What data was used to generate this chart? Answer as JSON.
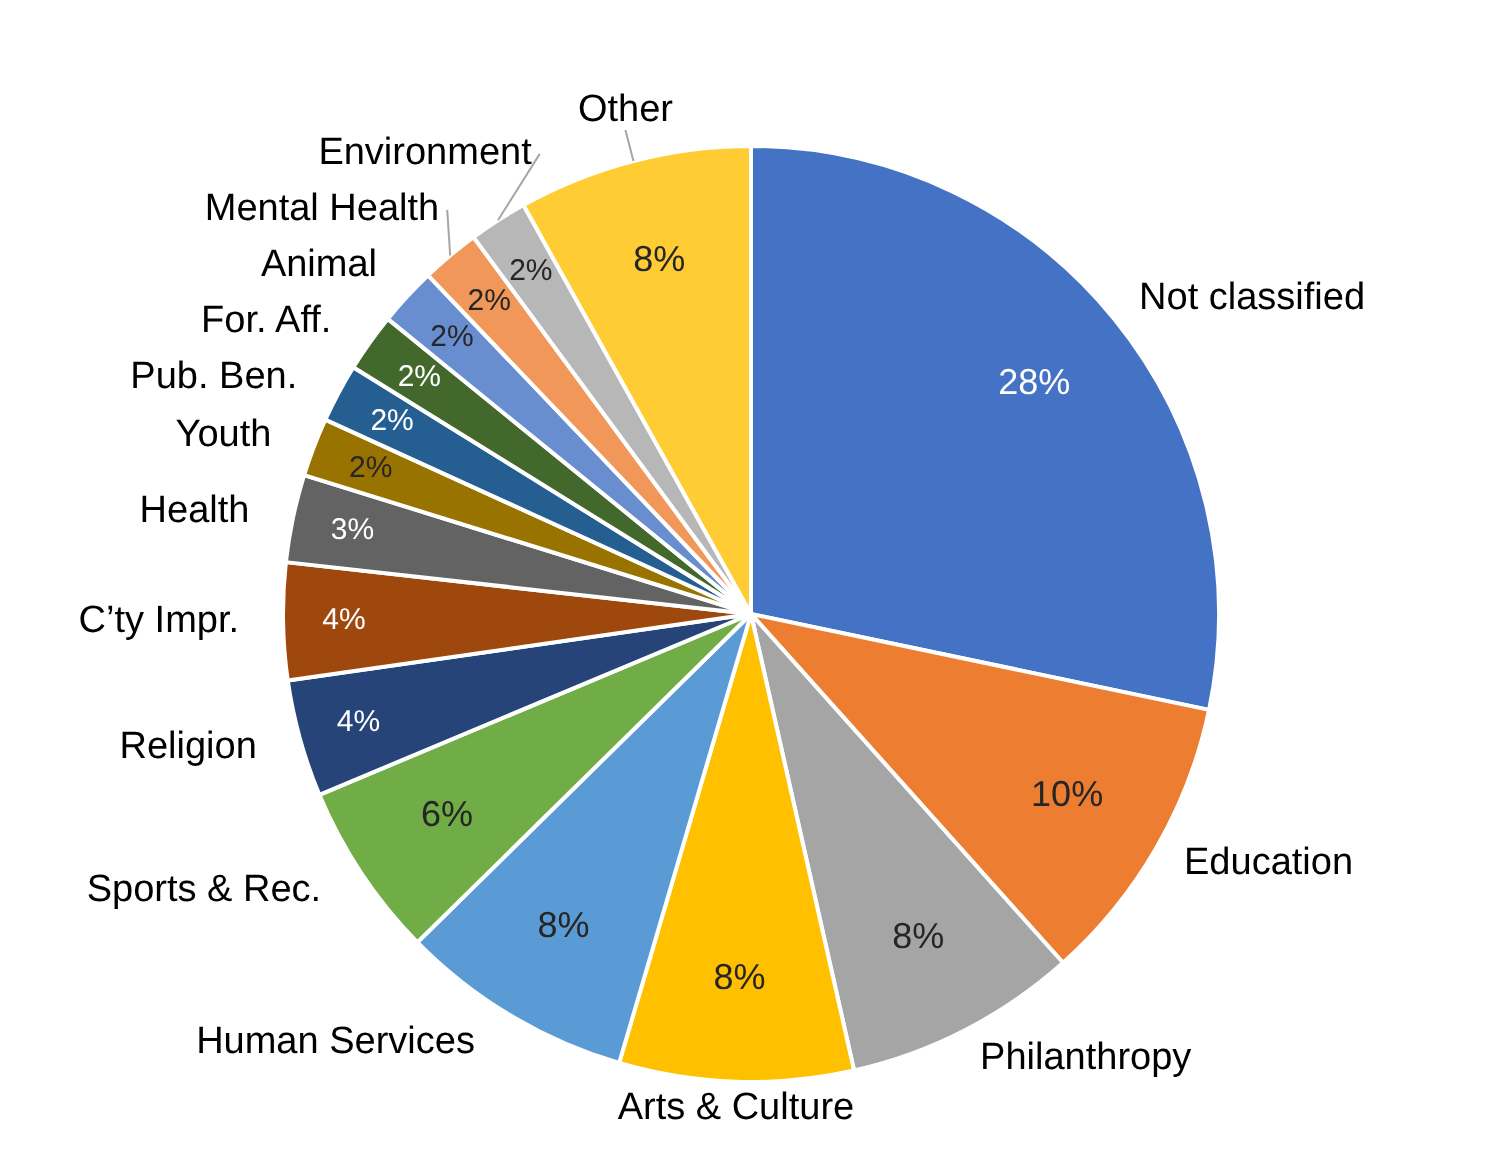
{
  "chart_data": {
    "type": "pie",
    "categories": [
      "Not classified",
      "Education",
      "Philanthropy",
      "Arts & Culture",
      "Human Services",
      "Sports & Rec.",
      "Religion",
      "C’ty Impr.",
      "Health",
      "Youth",
      "Pub. Ben.",
      "For. Aff.",
      "Animal",
      "Mental Health",
      "Environment",
      "Other"
    ],
    "values": [
      28,
      10,
      8,
      8,
      8,
      6,
      4,
      4,
      3,
      2,
      2,
      2,
      2,
      2,
      2,
      8
    ],
    "colors": [
      "#4472c4",
      "#ed7d31",
      "#a5a5a5",
      "#ffc000",
      "#5b9bd5",
      "#70ad47",
      "#264478",
      "#9e480e",
      "#636363",
      "#997300",
      "#255e91",
      "#43682b",
      "#698ed0",
      "#f1975a",
      "#b7b7b7",
      "#ffcd33"
    ],
    "value_labels": [
      "28%",
      "10%",
      "8%",
      "8%",
      "8%",
      "6%",
      "4%",
      "4%",
      "3%",
      "2%",
      "2%",
      "2%",
      "2%",
      "2%",
      "2%",
      "8%"
    ],
    "legend": false
  }
}
